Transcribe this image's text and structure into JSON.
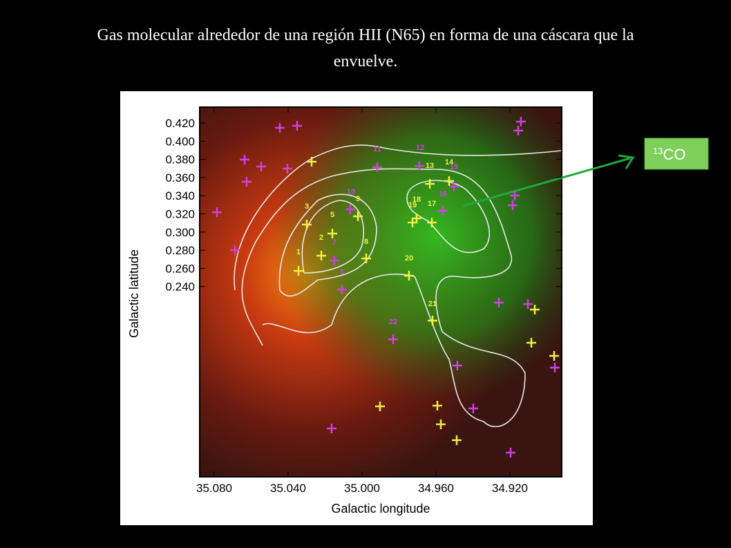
{
  "header": {
    "title_line1": "Gas molecular alrededor de una región HII (N65) en forma de una cáscara que la",
    "title_line2": "envuelve."
  },
  "figure": {
    "x_label": "Galactic longitude",
    "y_label": "Galactic latitude",
    "x_ticks": [
      "35.080",
      "35.040",
      "35.000",
      "34.960",
      "34.920"
    ],
    "y_ticks": [
      "0.420",
      "0.400",
      "0.380",
      "0.360",
      "0.340",
      "0.320",
      "0.300",
      "0.280",
      "0.260",
      "0.240"
    ],
    "source_labels": [
      "1",
      "2",
      "3",
      "5",
      "6",
      "7",
      "8",
      "9",
      "10",
      "11",
      "12",
      "13",
      "14",
      "15",
      "16",
      "17",
      "18",
      "19",
      "20",
      "21",
      "22"
    ]
  },
  "callout": {
    "prefix": "13",
    "text": "CO"
  }
}
